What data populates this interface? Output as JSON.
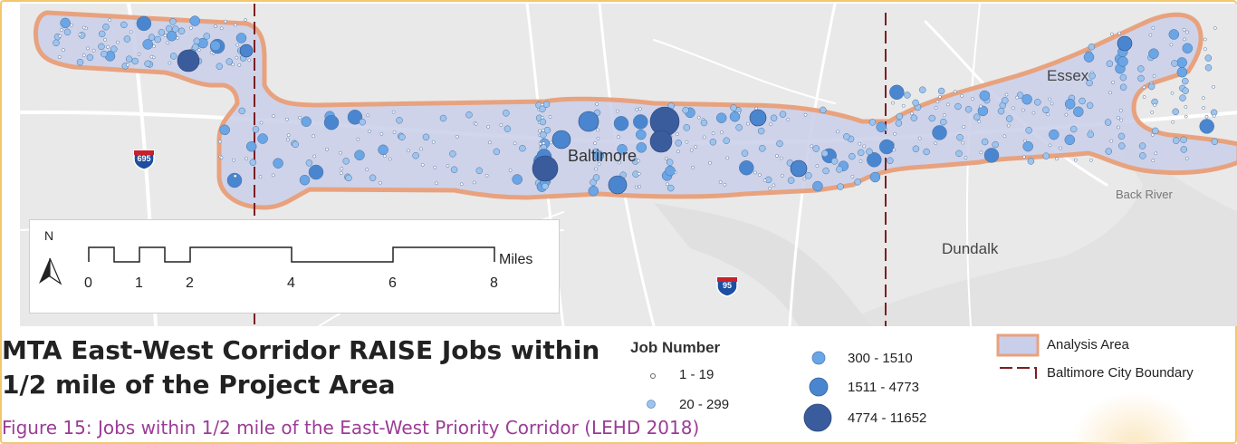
{
  "map": {
    "places": [
      {
        "name": "Baltimore",
        "label": "Baltimore"
      },
      {
        "name": "Essex",
        "label": "Essex"
      },
      {
        "name": "Back River",
        "label": "Back River"
      },
      {
        "name": "Dundalk",
        "label": "Dundalk"
      }
    ],
    "shields": [
      {
        "route": "695"
      },
      {
        "route": "95"
      }
    ],
    "scale_bar": {
      "north_label": "N",
      "ticks": [
        "0",
        "1",
        "2",
        "4",
        "6",
        "8"
      ],
      "unit_label": "Miles"
    },
    "colors": {
      "analysis_fill": "#c9cfea",
      "analysis_stroke": "#e8a27e",
      "point_light": "#6aa5e6",
      "point_mid": "#4a86d0",
      "point_dark": "#3b5c9c",
      "city_boundary": "#7a1f22"
    }
  },
  "title": "MTA East-West Corridor RAISE Jobs within 1/2 mile of the Project Area",
  "caption": "Figure 15: Jobs within 1/2 mile of the East-West Priority Corridor (LEHD 2018)",
  "legend": {
    "title": "Job Number",
    "classes": [
      {
        "label": "1 - 19"
      },
      {
        "label": "20 - 299"
      },
      {
        "label": "300 - 1510"
      },
      {
        "label": "1511 - 4773"
      },
      {
        "label": "4774 - 11652"
      }
    ],
    "analysis_area_label": "Analysis Area",
    "city_boundary_label": "Baltimore City Boundary"
  }
}
